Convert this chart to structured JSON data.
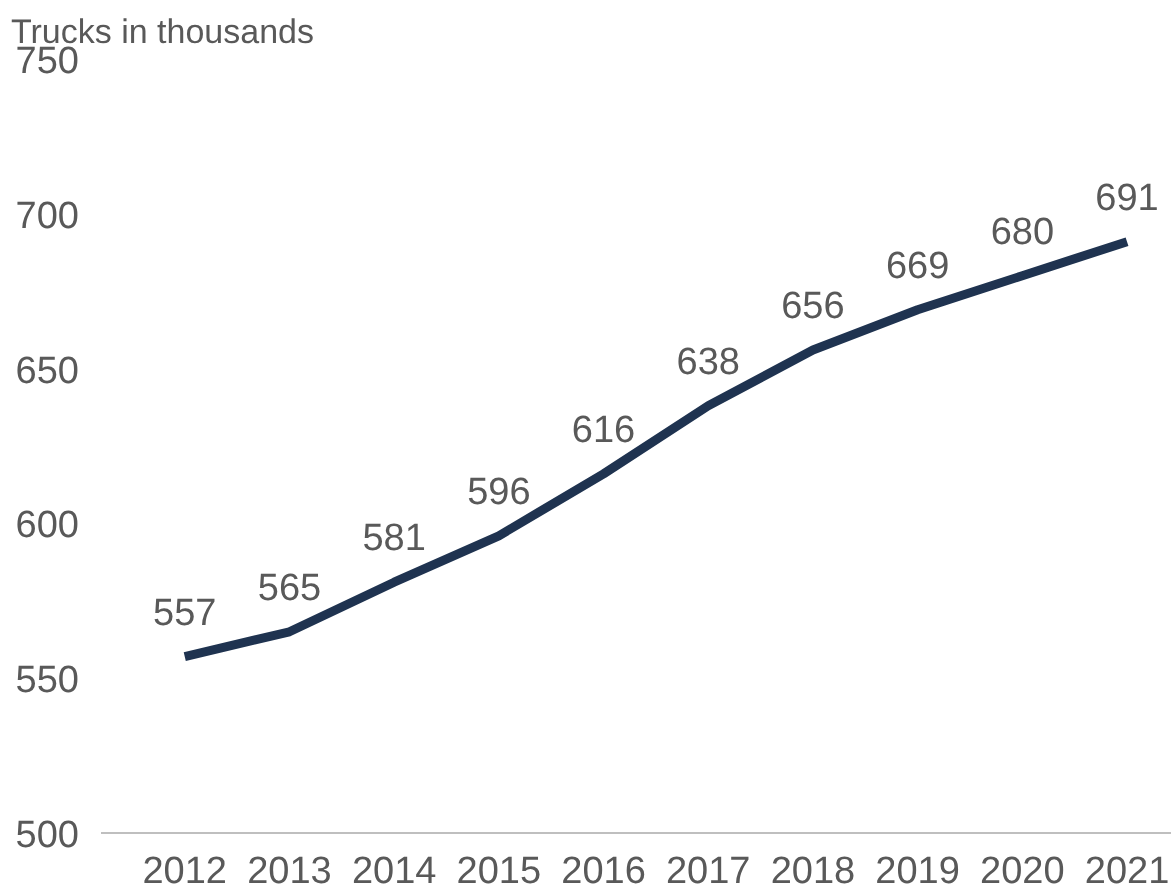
{
  "chart_data": {
    "type": "line",
    "ylabel": "Trucks in thousands",
    "categories": [
      "2012",
      "2013",
      "2014",
      "2015",
      "2016",
      "2017",
      "2018",
      "2019",
      "2020",
      "2021"
    ],
    "series": [
      {
        "color": "#1f3350",
        "values": [
          557,
          565,
          581,
          596,
          616,
          638,
          656,
          669,
          680,
          691
        ]
      }
    ],
    "ylim": [
      500,
      750
    ],
    "yticks": [
      500,
      550,
      600,
      650,
      700,
      750
    ],
    "data_labels": true,
    "grid": false,
    "marker": "none",
    "line_style": "solid"
  }
}
